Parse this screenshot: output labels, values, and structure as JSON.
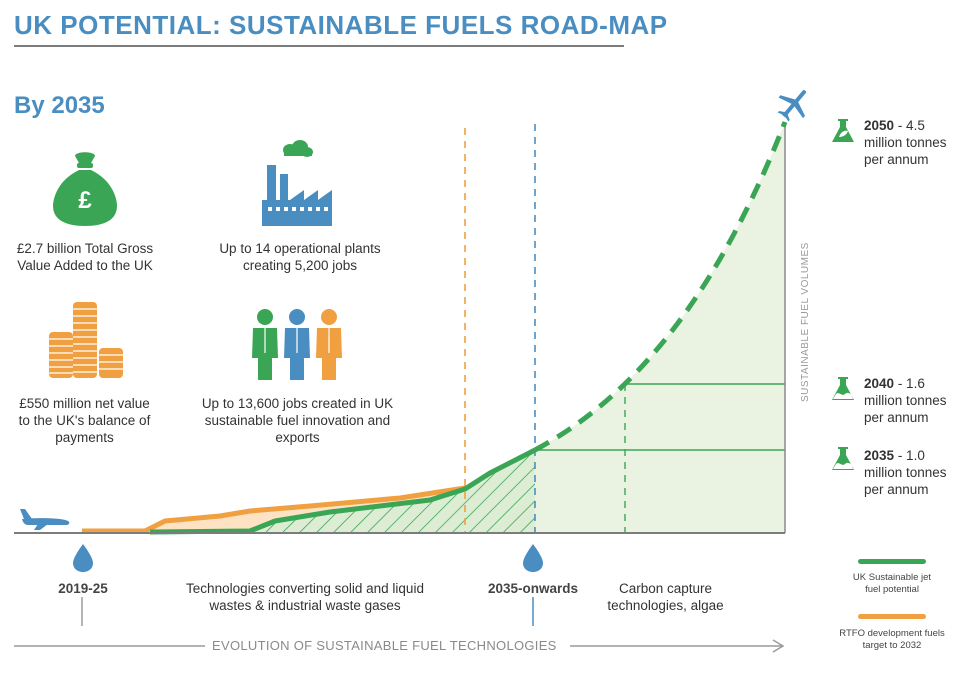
{
  "header": {
    "title": "UK POTENTIAL: SUSTAINABLE FUELS ROAD-MAP",
    "subtitle": "By 2035"
  },
  "stats": {
    "gva": "£2.7 billion Total Gross Value Added to the UK",
    "plants": "Up to 14 operational plants creating 5,200 jobs",
    "payments": "£550 million net value to the UK's balance of payments",
    "jobs": "Up to 13,600 jobs created in UK sustainable fuel innovation and exports"
  },
  "milestones": [
    {
      "year": "2050",
      "text": "- 4.5 million tonnes per annum"
    },
    {
      "year": "2040",
      "text": "- 1.6 million tonnes per annum"
    },
    {
      "year": "2035",
      "text": "- 1.0 million tonnes per annum"
    }
  ],
  "axis": {
    "y_label": "SUSTAINABLE FUEL VOLUMES",
    "x_label": "EVOLUTION OF SUSTAINABLE FUEL TECHNOLOGIES"
  },
  "timeline": {
    "start_label": "2019-25",
    "phase1_text": "Technologies converting solid and liquid wastes & industrial waste gases",
    "mid_label": "2035-onwards",
    "phase2_text": "Carbon capture technologies, algae"
  },
  "legend": [
    {
      "label": "UK Sustainable jet fuel potential",
      "color": "#3aa655"
    },
    {
      "label": "RTFO development fuels target to 2032",
      "color": "#f0a040"
    }
  ],
  "colors": {
    "blue": "#4a8ec1",
    "green": "#3aa655",
    "orange": "#f0a040",
    "green_fill": "#eaf3e1",
    "orange_fill": "#fde3c4"
  },
  "icons": [
    "money-bag-icon",
    "factory-icon",
    "coins-icon",
    "people-icon",
    "plane-icon",
    "flask-icon",
    "droplet-icon",
    "arrow-right-icon"
  ]
}
